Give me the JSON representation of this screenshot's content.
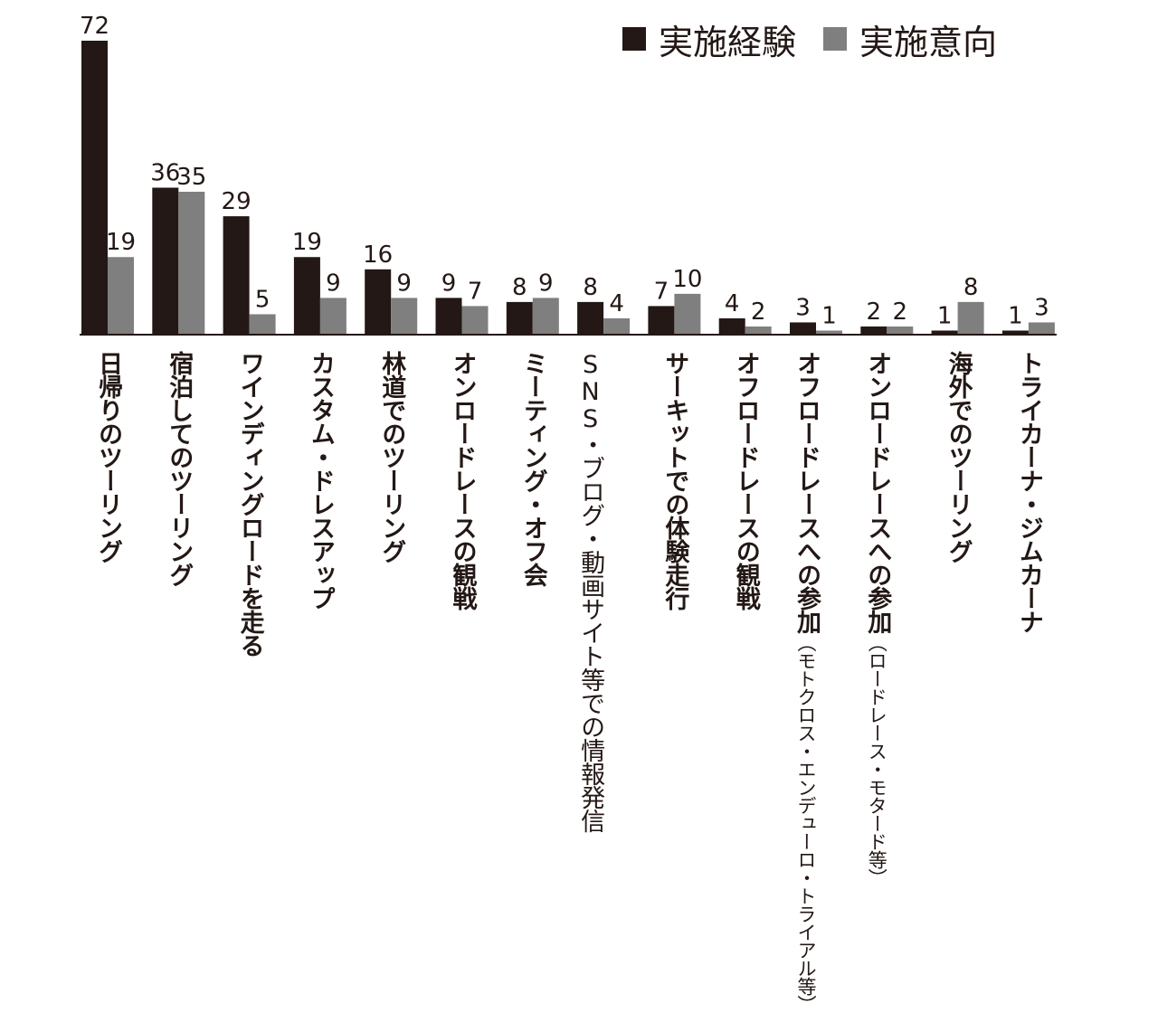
{
  "chart_data": {
    "type": "bar",
    "categories": [
      [
        "日帰りのツーリング"
      ],
      [
        "宿泊してのツーリング"
      ],
      [
        "ワインディングロードを走る"
      ],
      [
        "カスタム・ドレスアップ"
      ],
      [
        "林道でのツーリング"
      ],
      [
        "オンロードレースの観戦"
      ],
      [
        "ミーティング・オフ会"
      ],
      [
        "SNS・ブログ・動画サイト",
        "等での情報発信"
      ],
      [
        "サーキットでの体験走行"
      ],
      [
        "オフロードレースの観戦"
      ],
      [
        "オフロードレースへの参加",
        "（モトクロス・エンデューロ・トライアル等）"
      ],
      [
        "オンロードレースへの参加",
        "（ロードレース・モタード等）"
      ],
      [
        "海外でのツーリング"
      ],
      [
        "トライカーナ・ジムカーナ"
      ]
    ],
    "series": [
      {
        "name": "実施経験",
        "color": "#231815",
        "values": [
          72,
          36,
          29,
          19,
          16,
          9,
          8,
          8,
          7,
          4,
          3,
          2,
          1,
          1
        ]
      },
      {
        "name": "実施意向",
        "color": "#7f7f7f",
        "values": [
          19,
          35,
          5,
          9,
          9,
          7,
          9,
          4,
          10,
          2,
          1,
          2,
          8,
          3
        ]
      }
    ],
    "ylim": [
      0,
      72
    ],
    "legend_position": "top-right",
    "grid": false
  }
}
